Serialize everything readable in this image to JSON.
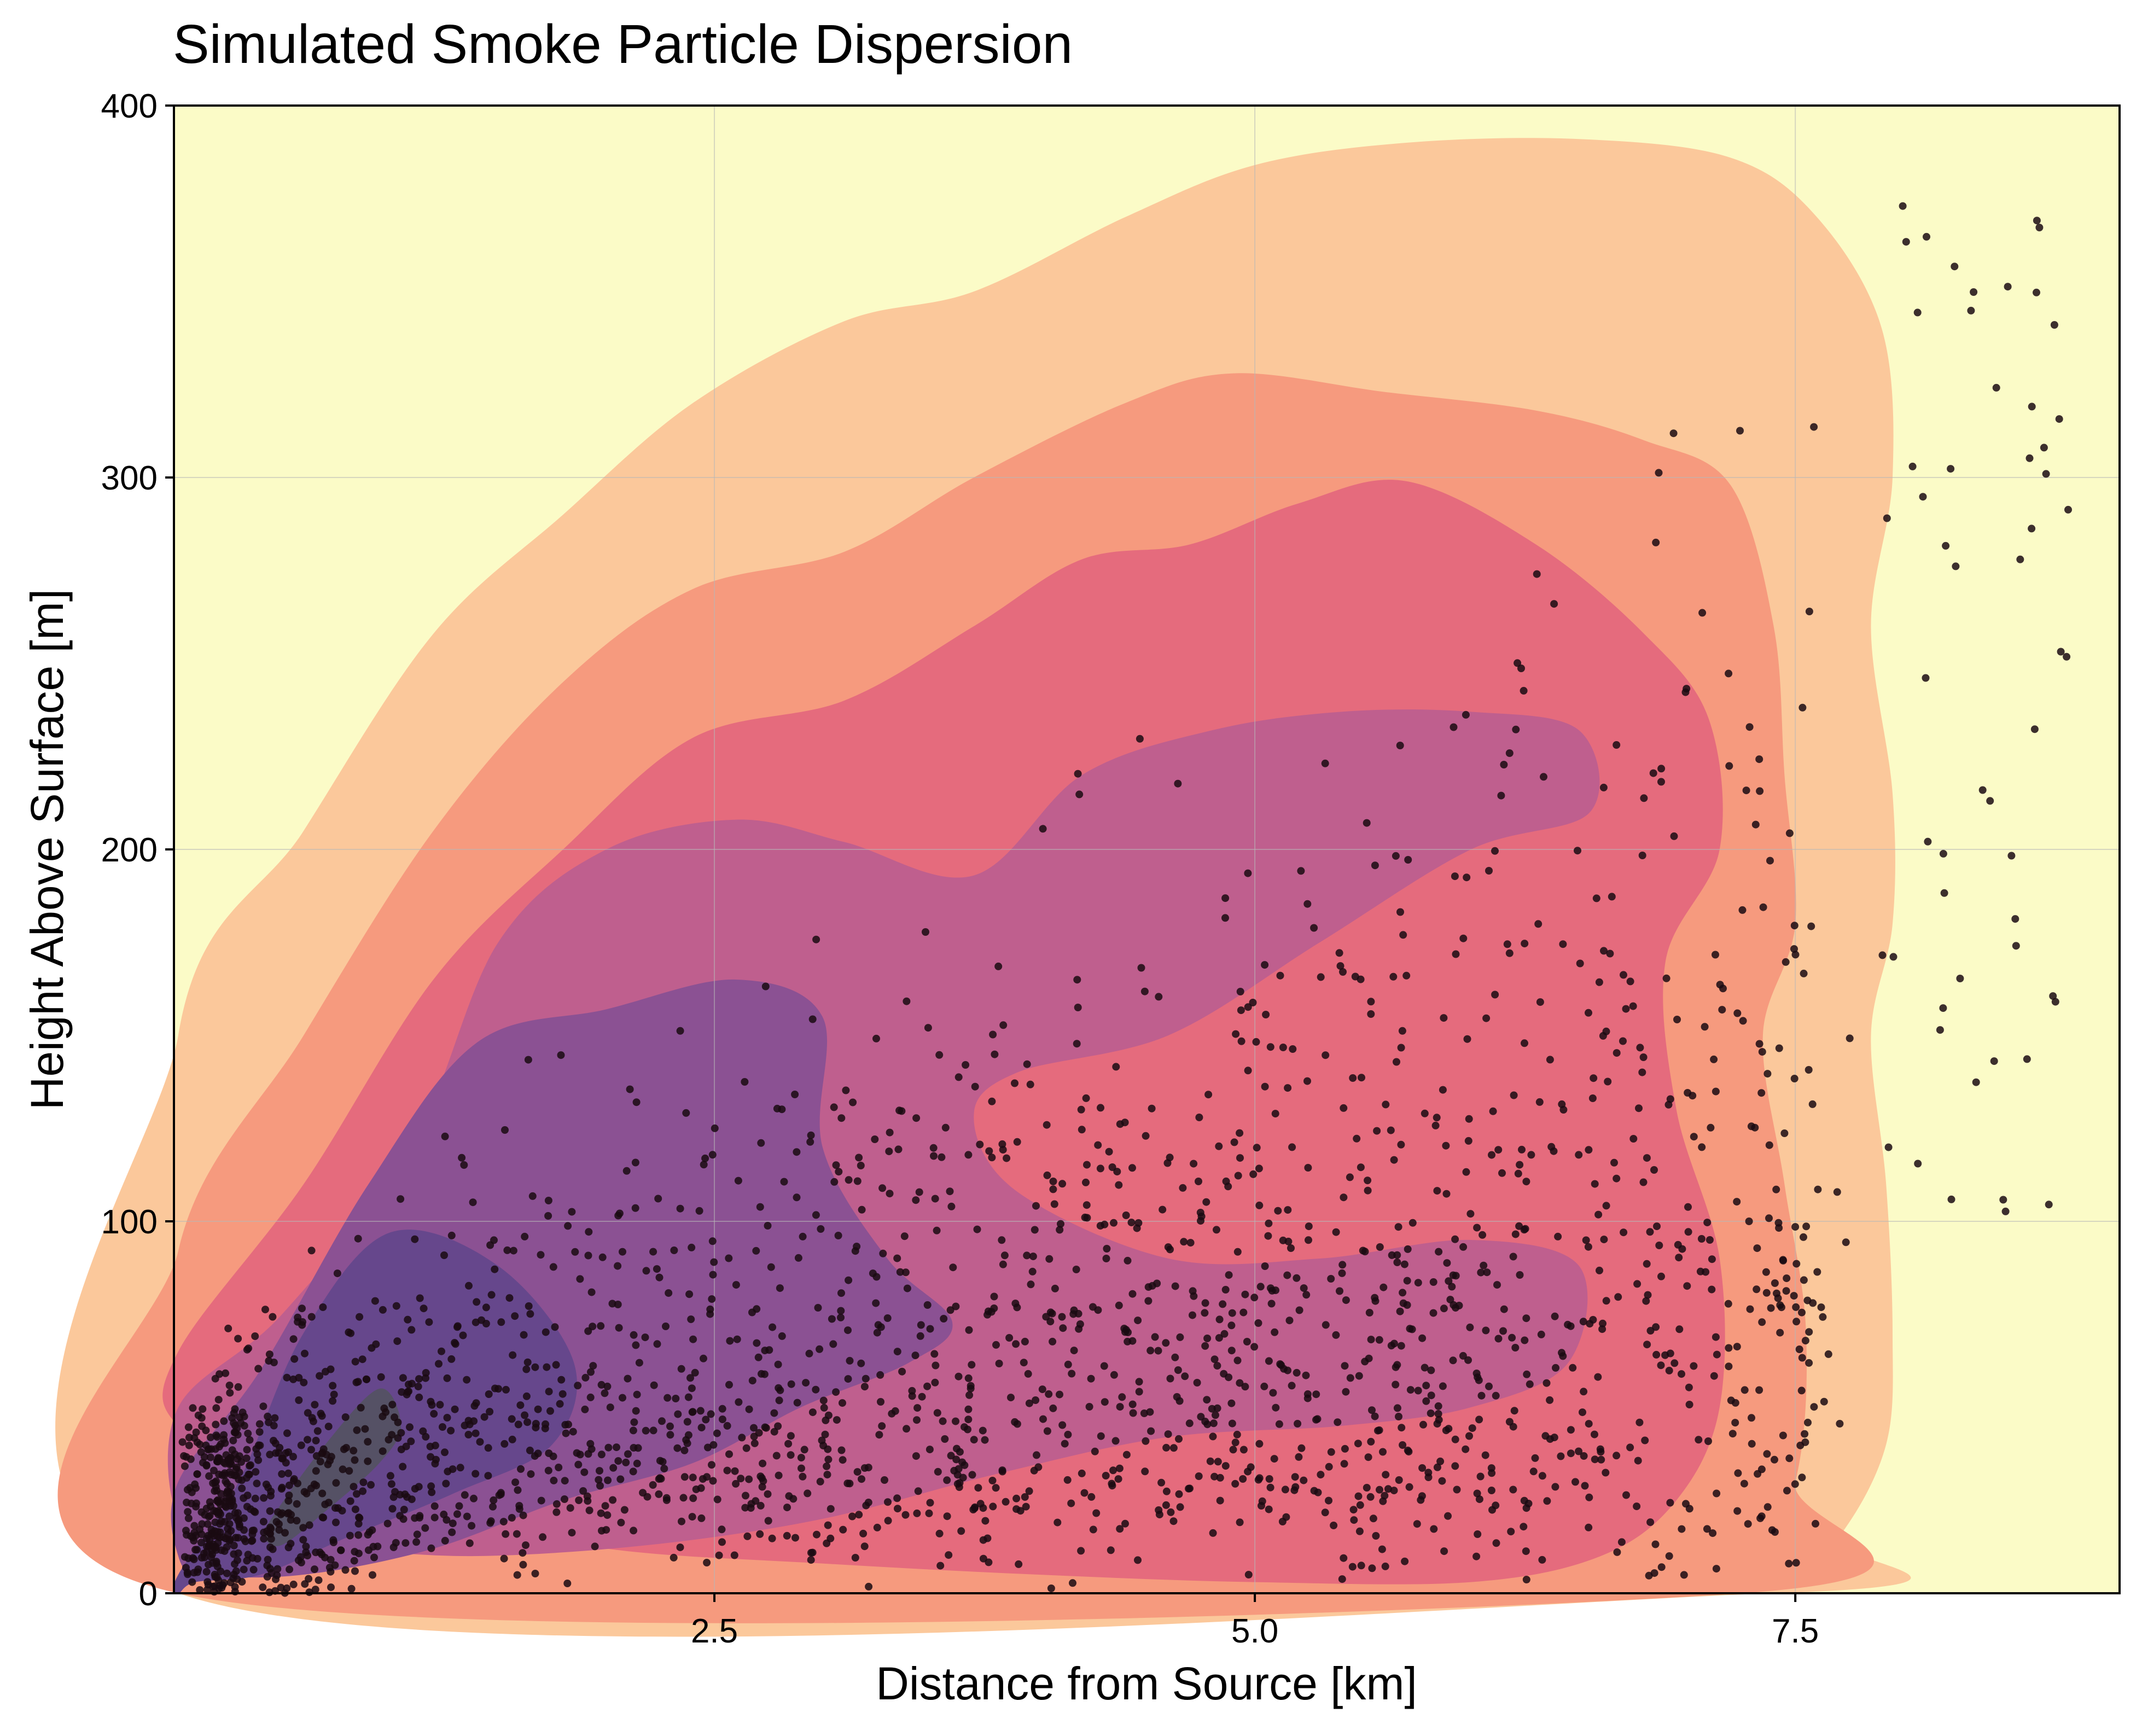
{
  "chart_data": {
    "type": "scatter",
    "title": "Simulated Smoke Particle Dispersion",
    "xlabel": "Distance from Source [km]",
    "ylabel": "Height Above Surface [m]",
    "xlim": [
      0,
      9.0
    ],
    "ylim": [
      0,
      400
    ],
    "x_ticks": [
      2.5,
      5.0,
      7.5
    ],
    "x_tick_labels": [
      "2.5",
      "5.0",
      "7.5"
    ],
    "y_ticks": [
      0,
      100,
      200,
      300,
      400
    ],
    "y_tick_labels": [
      "0",
      "100",
      "200",
      "300",
      "400"
    ],
    "grid": true,
    "legend": "none",
    "background_color": "#fbfbc7",
    "point_color": "#1a0a12",
    "density_levels": [
      {
        "level": 1,
        "color": "#fbc89b",
        "polygon": [
          [
            0.02,
            150
          ],
          [
            0.6,
            205
          ],
          [
            1.2,
            258
          ],
          [
            1.8,
            290
          ],
          [
            2.4,
            320
          ],
          [
            3.1,
            342
          ],
          [
            3.7,
            350
          ],
          [
            4.4,
            370
          ],
          [
            5.0,
            384
          ],
          [
            5.7,
            390
          ],
          [
            6.5,
            391
          ],
          [
            7.2,
            386
          ],
          [
            7.6,
            370
          ],
          [
            7.9,
            340
          ],
          [
            7.95,
            300
          ],
          [
            7.85,
            260
          ],
          [
            7.95,
            215
          ],
          [
            7.95,
            180
          ],
          [
            7.85,
            150
          ],
          [
            7.92,
            110
          ],
          [
            7.95,
            70
          ],
          [
            7.92,
            40
          ],
          [
            7.7,
            15
          ],
          [
            7.4,
            0
          ],
          [
            0.02,
            0
          ]
        ]
      },
      {
        "level": 2,
        "color": "#f69a7e",
        "polygon": [
          [
            0.02,
            92
          ],
          [
            0.6,
            150
          ],
          [
            1.2,
            205
          ],
          [
            1.8,
            245
          ],
          [
            2.4,
            270
          ],
          [
            3.1,
            280
          ],
          [
            3.7,
            300
          ],
          [
            4.4,
            320
          ],
          [
            4.9,
            328
          ],
          [
            5.6,
            323
          ],
          [
            6.3,
            318
          ],
          [
            6.8,
            310
          ],
          [
            7.2,
            298
          ],
          [
            7.4,
            260
          ],
          [
            7.45,
            220
          ],
          [
            7.5,
            180
          ],
          [
            7.35,
            150
          ],
          [
            7.45,
            110
          ],
          [
            7.55,
            70
          ],
          [
            7.5,
            30
          ],
          [
            7.25,
            0
          ],
          [
            0.02,
            0
          ]
        ]
      },
      {
        "level": 3,
        "color": "#e56b7d",
        "polygon": [
          [
            0.02,
            65
          ],
          [
            0.6,
            110
          ],
          [
            1.2,
            165
          ],
          [
            1.8,
            200
          ],
          [
            2.4,
            230
          ],
          [
            3.1,
            240
          ],
          [
            3.7,
            260
          ],
          [
            4.2,
            278
          ],
          [
            4.7,
            282
          ],
          [
            5.2,
            293
          ],
          [
            5.7,
            299
          ],
          [
            6.3,
            282
          ],
          [
            6.8,
            258
          ],
          [
            7.1,
            235
          ],
          [
            7.15,
            200
          ],
          [
            6.9,
            170
          ],
          [
            6.95,
            130
          ],
          [
            7.15,
            90
          ],
          [
            7.15,
            50
          ],
          [
            6.95,
            25
          ],
          [
            6.6,
            10
          ],
          [
            6.0,
            3
          ],
          [
            5.0,
            3
          ],
          [
            4.0,
            5
          ],
          [
            3.0,
            8
          ],
          [
            2.0,
            12
          ],
          [
            1.2,
            22
          ],
          [
            0.6,
            30
          ],
          [
            0.02,
            45
          ]
        ]
      },
      {
        "level": 4,
        "color": "#bf5f8e",
        "polygon": [
          [
            0.02,
            50
          ],
          [
            0.5,
            75
          ],
          [
            1.1,
            120
          ],
          [
            1.5,
            175
          ],
          [
            2.0,
            200
          ],
          [
            2.6,
            208
          ],
          [
            3.1,
            202
          ],
          [
            3.7,
            193
          ],
          [
            4.2,
            220
          ],
          [
            4.8,
            232
          ],
          [
            5.4,
            237
          ],
          [
            6.0,
            237
          ],
          [
            6.5,
            232
          ],
          [
            6.55,
            210
          ],
          [
            6.0,
            200
          ],
          [
            5.3,
            175
          ],
          [
            4.6,
            150
          ],
          [
            3.9,
            140
          ],
          [
            3.7,
            128
          ],
          [
            3.9,
            108
          ],
          [
            4.6,
            90
          ],
          [
            5.3,
            90
          ],
          [
            6.0,
            95
          ],
          [
            6.5,
            88
          ],
          [
            6.45,
            62
          ],
          [
            6.0,
            50
          ],
          [
            5.4,
            45
          ],
          [
            4.6,
            42
          ],
          [
            3.8,
            32
          ],
          [
            3.0,
            20
          ],
          [
            2.2,
            13
          ],
          [
            1.4,
            10
          ],
          [
            0.8,
            12
          ],
          [
            0.3,
            15
          ],
          [
            0.02,
            20
          ]
        ]
      },
      {
        "level": 5,
        "color": "#8b5193",
        "polygon": [
          [
            0.02,
            30
          ],
          [
            0.4,
            60
          ],
          [
            0.9,
            110
          ],
          [
            1.4,
            148
          ],
          [
            2.0,
            157
          ],
          [
            2.6,
            165
          ],
          [
            3.0,
            155
          ],
          [
            3.0,
            120
          ],
          [
            3.3,
            90
          ],
          [
            3.6,
            73
          ],
          [
            3.4,
            62
          ],
          [
            2.9,
            50
          ],
          [
            2.4,
            35
          ],
          [
            1.8,
            25
          ],
          [
            1.2,
            12
          ],
          [
            0.6,
            5
          ],
          [
            0.15,
            5
          ],
          [
            0.02,
            10
          ]
        ]
      },
      {
        "level": 6,
        "color": "#66478c",
        "polygon": [
          [
            0.02,
            5
          ],
          [
            0.3,
            30
          ],
          [
            0.6,
            70
          ],
          [
            1.0,
            97
          ],
          [
            1.5,
            88
          ],
          [
            1.85,
            62
          ],
          [
            1.75,
            40
          ],
          [
            1.3,
            27
          ],
          [
            0.8,
            15
          ],
          [
            0.4,
            5
          ],
          [
            0.1,
            3
          ],
          [
            0.02,
            0
          ]
        ]
      },
      {
        "level": 7,
        "color": "#555165",
        "polygon": [
          [
            0.45,
            20
          ],
          [
            0.7,
            40
          ],
          [
            0.95,
            55
          ],
          [
            1.05,
            45
          ],
          [
            0.95,
            35
          ],
          [
            0.7,
            22
          ],
          [
            0.5,
            13
          ],
          [
            0.42,
            15
          ]
        ]
      }
    ]
  }
}
